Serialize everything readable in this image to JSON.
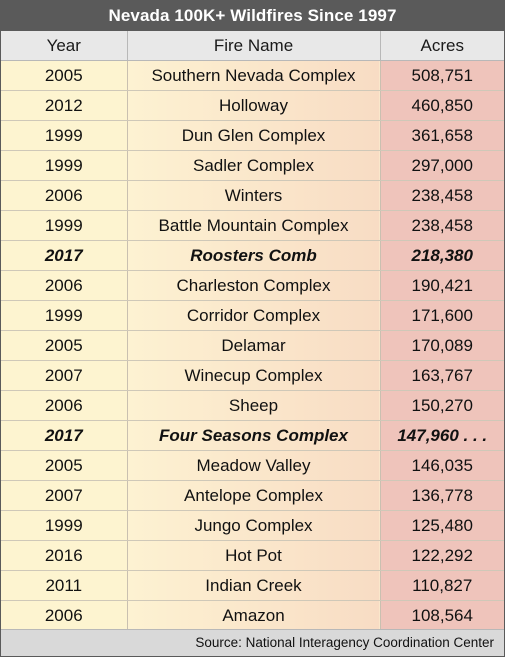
{
  "chart_data": {
    "type": "table",
    "title": "Nevada 100K+ Wildfires Since 1997",
    "columns": [
      "Year",
      "Fire Name",
      "Acres"
    ],
    "rows": [
      {
        "year": "2005",
        "name": "Southern Nevada Complex",
        "acres": "508,751",
        "highlight": false
      },
      {
        "year": "2012",
        "name": "Holloway",
        "acres": "460,850",
        "highlight": false
      },
      {
        "year": "1999",
        "name": "Dun Glen Complex",
        "acres": "361,658",
        "highlight": false
      },
      {
        "year": "1999",
        "name": "Sadler Complex",
        "acres": "297,000",
        "highlight": false
      },
      {
        "year": "2006",
        "name": "Winters",
        "acres": "238,458",
        "highlight": false
      },
      {
        "year": "1999",
        "name": "Battle Mountain Complex",
        "acres": "238,458",
        "highlight": false
      },
      {
        "year": "2017",
        "name": "Roosters Comb",
        "acres": "218,380",
        "highlight": true
      },
      {
        "year": "2006",
        "name": "Charleston Complex",
        "acres": "190,421",
        "highlight": false
      },
      {
        "year": "1999",
        "name": "Corridor Complex",
        "acres": "171,600",
        "highlight": false
      },
      {
        "year": "2005",
        "name": "Delamar",
        "acres": "170,089",
        "highlight": false
      },
      {
        "year": "2007",
        "name": "Winecup Complex",
        "acres": "163,767",
        "highlight": false
      },
      {
        "year": "2006",
        "name": "Sheep",
        "acres": "150,270",
        "highlight": false
      },
      {
        "year": "2017",
        "name": "Four Seasons Complex",
        "acres": "147,960 . . .",
        "highlight": true
      },
      {
        "year": "2005",
        "name": "Meadow Valley",
        "acres": "146,035",
        "highlight": false
      },
      {
        "year": "2007",
        "name": "Antelope Complex",
        "acres": "136,778",
        "highlight": false
      },
      {
        "year": "1999",
        "name": "Jungo Complex",
        "acres": "125,480",
        "highlight": false
      },
      {
        "year": "2016",
        "name": "Hot Pot",
        "acres": "122,292",
        "highlight": false
      },
      {
        "year": "2011",
        "name": "Indian Creek",
        "acres": "110,827",
        "highlight": false
      },
      {
        "year": "2006",
        "name": "Amazon",
        "acres": "108,564",
        "highlight": false
      }
    ],
    "source": "Source: National Interagency Coordination Center"
  },
  "colors": {
    "title_bg": "#5a5a5a",
    "header_bg": "#e8e8e8",
    "year_bg": "#fdf4d0",
    "name_bg_start": "#fdf2d2",
    "name_bg_end": "#f8dcc4",
    "acres_bg": "#efc4bb",
    "source_bg": "#d9d9d9"
  }
}
